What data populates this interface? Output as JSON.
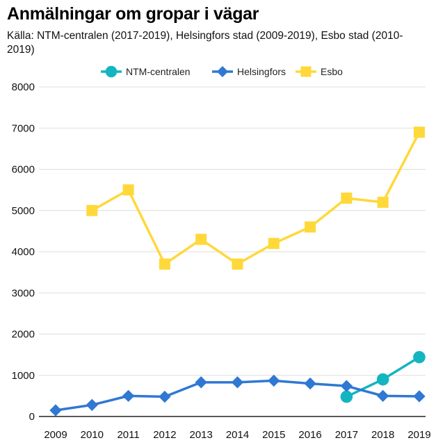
{
  "chart_data": {
    "type": "line",
    "title": "Anmälningar om gropar i vägar",
    "subtitle": "Källa: NTM-centralen (2017-2019), Helsingfors stad (2009-2019), Esbo stad (2010-2019)",
    "xlabel": "",
    "ylabel": "",
    "x": [
      2009,
      2010,
      2011,
      2012,
      2013,
      2014,
      2015,
      2016,
      2017,
      2018,
      2019
    ],
    "x_tick_labels": [
      "2009",
      "2010",
      "2011",
      "2012",
      "2013",
      "2014",
      "2015",
      "2016",
      "2017",
      "2018",
      "2019"
    ],
    "ylim": [
      0,
      8000
    ],
    "y_ticks": [
      0,
      1000,
      2000,
      3000,
      4000,
      5000,
      6000,
      7000,
      8000
    ],
    "y_tick_labels": [
      "0",
      "1000",
      "2000",
      "3000",
      "4000",
      "5000",
      "6000",
      "7000",
      "8000"
    ],
    "grid": true,
    "legend_position": "top",
    "series": [
      {
        "name": "NTM-centralen",
        "color": "#13b5c1",
        "marker": "circle",
        "values": [
          null,
          null,
          null,
          null,
          null,
          null,
          null,
          null,
          480,
          900,
          1440
        ]
      },
      {
        "name": "Helsingfors",
        "color": "#2f78d3",
        "marker": "diamond",
        "values": [
          150,
          280,
          500,
          480,
          830,
          830,
          870,
          800,
          740,
          500,
          490
        ]
      },
      {
        "name": "Esbo",
        "color": "#ffd83a",
        "marker": "square",
        "values": [
          null,
          5000,
          5500,
          3700,
          4300,
          3700,
          4200,
          4600,
          5300,
          5200,
          6900
        ]
      }
    ]
  }
}
